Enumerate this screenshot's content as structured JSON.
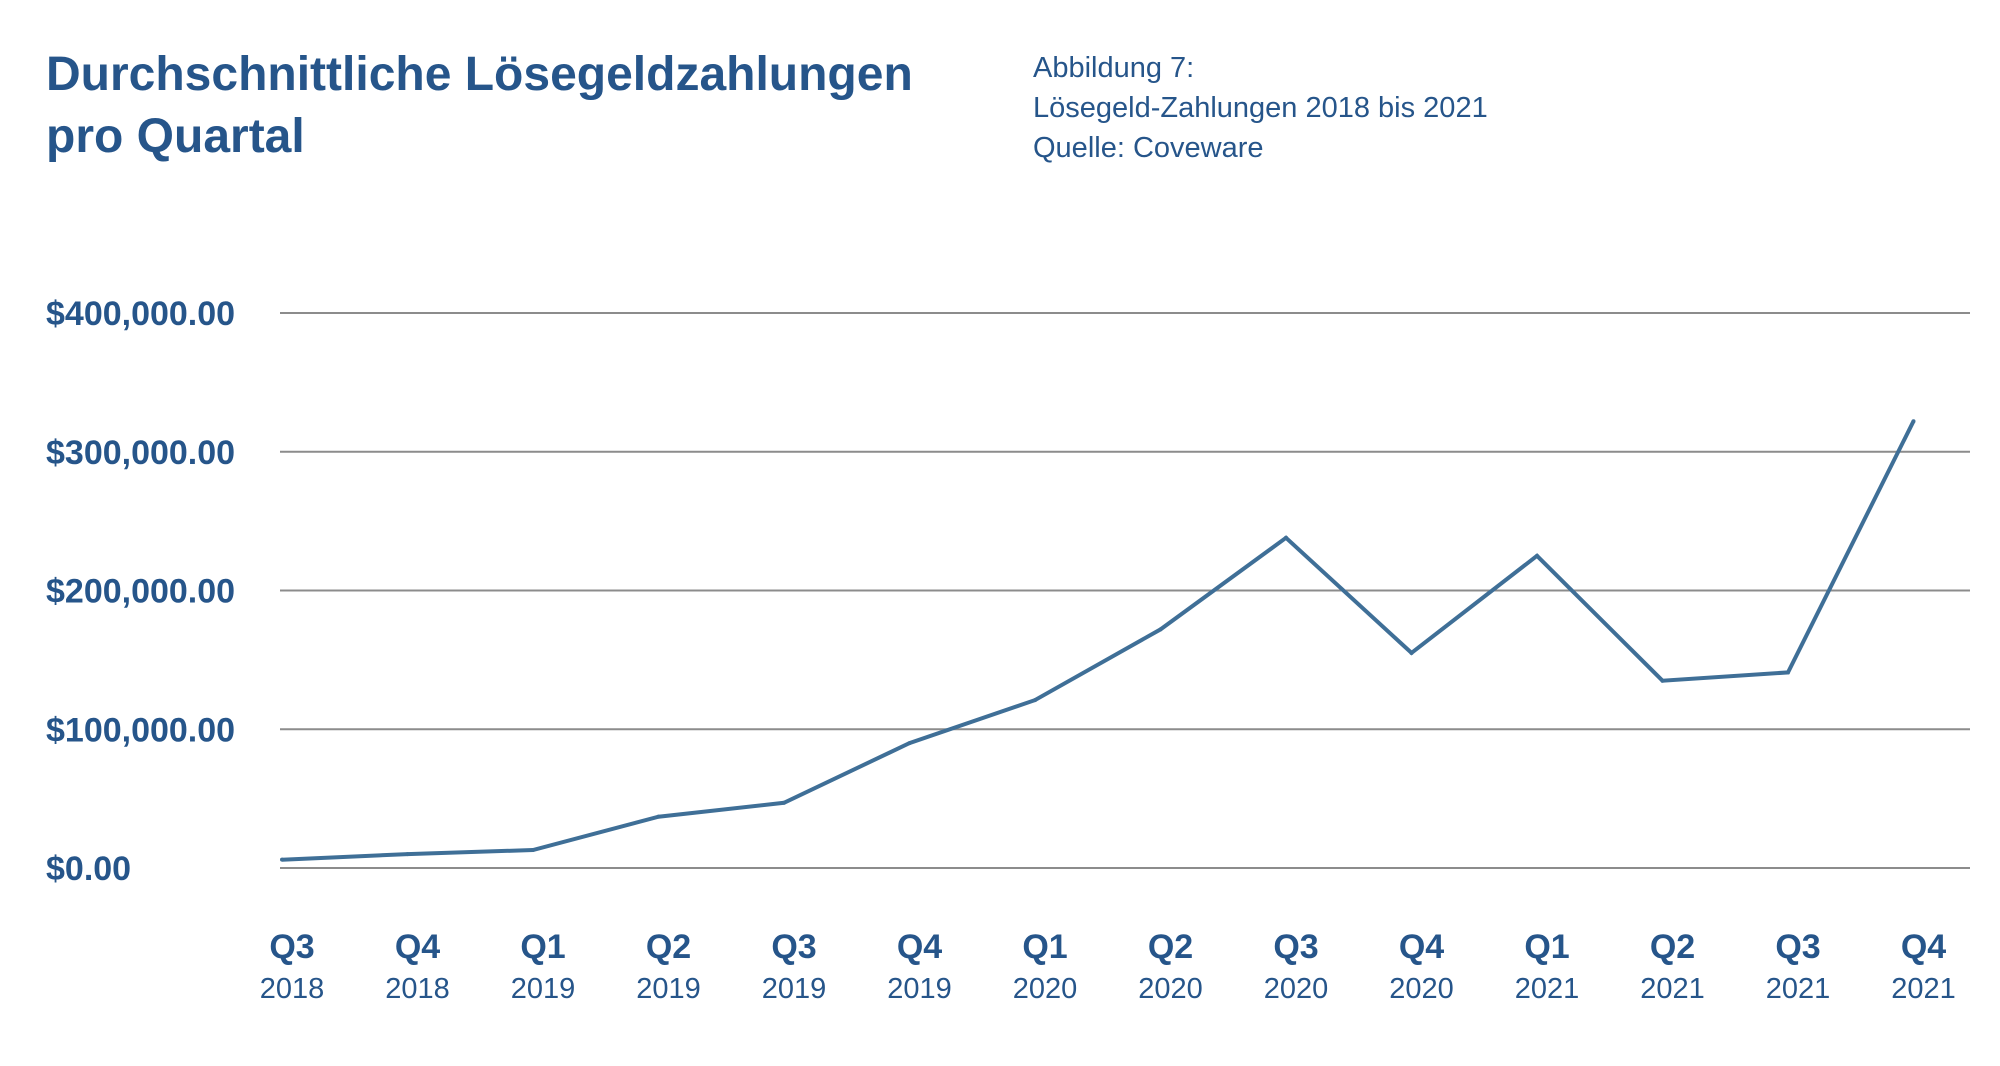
{
  "header": {
    "title_line1": "Durchschnittliche Lösegeldzahlungen",
    "title_line2": "pro Quartal",
    "caption_line1": "Abbildung 7:",
    "caption_line2": "Lösegeld-Zahlungen 2018 bis 2021",
    "caption_line3": "Quelle: Coveware"
  },
  "colors": {
    "text": "#26558a",
    "line": "#3f6f97",
    "grid": "#8c8c8c"
  },
  "chart_data": {
    "type": "line",
    "title": "Durchschnittliche Lösegeldzahlungen pro Quartal",
    "categories": [
      {
        "quarter": "Q3",
        "year": "2018"
      },
      {
        "quarter": "Q4",
        "year": "2018"
      },
      {
        "quarter": "Q1",
        "year": "2019"
      },
      {
        "quarter": "Q2",
        "year": "2019"
      },
      {
        "quarter": "Q3",
        "year": "2019"
      },
      {
        "quarter": "Q4",
        "year": "2019"
      },
      {
        "quarter": "Q1",
        "year": "2020"
      },
      {
        "quarter": "Q2",
        "year": "2020"
      },
      {
        "quarter": "Q3",
        "year": "2020"
      },
      {
        "quarter": "Q4",
        "year": "2020"
      },
      {
        "quarter": "Q1",
        "year": "2021"
      },
      {
        "quarter": "Q2",
        "year": "2021"
      },
      {
        "quarter": "Q3",
        "year": "2021"
      },
      {
        "quarter": "Q4",
        "year": "2021"
      }
    ],
    "series": [
      {
        "values": [
          6000,
          10000,
          13000,
          37000,
          47000,
          90000,
          121000,
          172000,
          238000,
          155000,
          225000,
          135000,
          141000,
          322000
        ]
      }
    ],
    "yticks": [
      0,
      100000,
      200000,
      300000,
      400000
    ],
    "ytick_labels": [
      "$0.00",
      "$100,000.00",
      "$200,000.00",
      "$300,000.00",
      "$400,000.00"
    ],
    "ylim": [
      0,
      400000
    ],
    "grid": true,
    "legend": "none"
  }
}
